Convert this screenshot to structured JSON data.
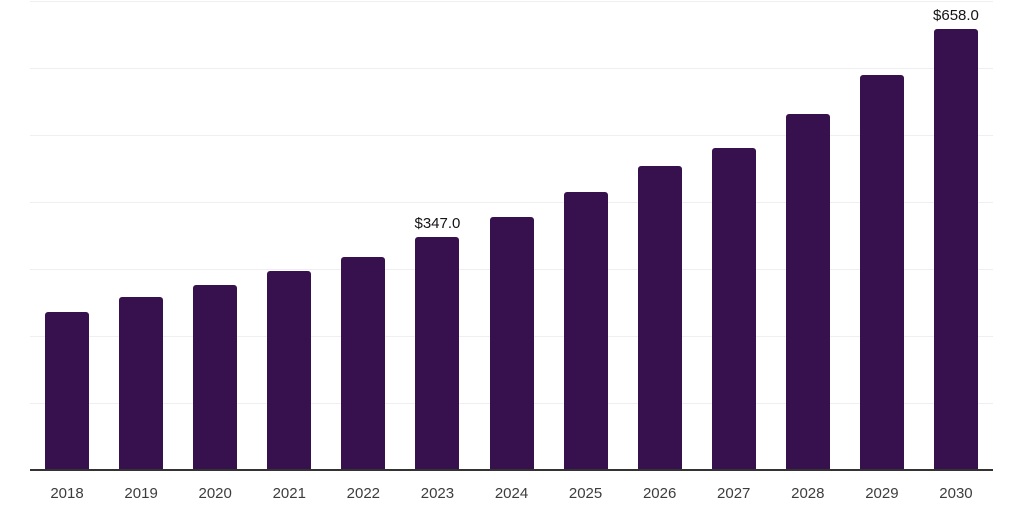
{
  "chart": {
    "background_color": "#ffffff",
    "bar_color": "#36114D",
    "grid_color": "#efeff2",
    "axis_line_color": "#333333",
    "tick_label_color": "#3d3d3d",
    "value_label_color": "#141414"
  },
  "chart_data": {
    "type": "bar",
    "title": "",
    "xlabel": "",
    "ylabel": "",
    "categories": [
      "2018",
      "2019",
      "2020",
      "2021",
      "2022",
      "2023",
      "2024",
      "2025",
      "2026",
      "2027",
      "2028",
      "2029",
      "2030"
    ],
    "values": [
      235,
      258,
      275,
      297,
      318,
      347.0,
      378,
      415,
      453,
      480,
      531,
      589,
      658.0
    ],
    "data_labels": [
      {
        "category": "2023",
        "index": 5,
        "text": "$347.0"
      },
      {
        "category": "2030",
        "index": 12,
        "text": "$658.0"
      }
    ],
    "ylim": [
      0,
      700
    ],
    "grid_step": 100,
    "grid": true,
    "legend": false,
    "y_tick_labels_visible": false
  }
}
